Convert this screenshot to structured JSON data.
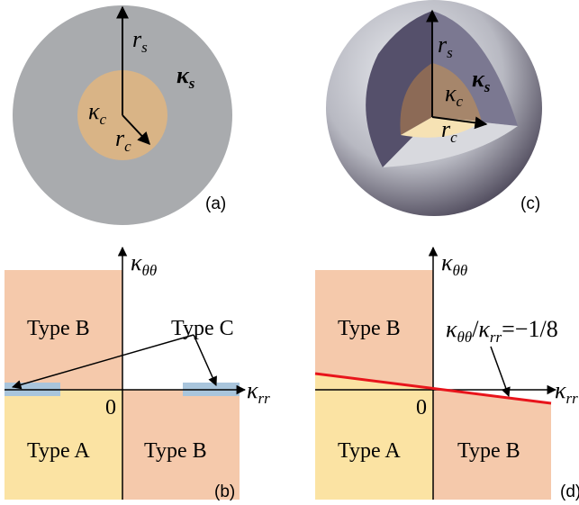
{
  "panel_a": {
    "shell_radius": {
      "symbol": "r",
      "sub": "s"
    },
    "shell_stiffness": {
      "symbol": "κ",
      "sub": "s"
    },
    "core_stiffness": {
      "symbol": "κ",
      "sub": "c"
    },
    "core_radius": {
      "symbol": "r",
      "sub": "c"
    },
    "tag": "(a)"
  },
  "panel_c": {
    "shell_radius": {
      "symbol": "r",
      "sub": "s"
    },
    "shell_stiffness": {
      "symbol": "κ",
      "sub": "s"
    },
    "core_stiffness": {
      "symbol": "κ",
      "sub": "c"
    },
    "core_radius": {
      "symbol": "r",
      "sub": "c"
    },
    "tag": "(c)"
  },
  "panel_b": {
    "y_axis": {
      "symbol": "κ",
      "sub": "θθ"
    },
    "x_axis": {
      "symbol": "κ",
      "sub": "rr"
    },
    "origin": "0",
    "regions": [
      "Type B",
      "Type C",
      "Type A",
      "Type B"
    ],
    "tag": "(b)"
  },
  "panel_d": {
    "y_axis": {
      "symbol": "κ",
      "sub": "θθ"
    },
    "x_axis": {
      "symbol": "κ",
      "sub": "rr"
    },
    "origin": "0",
    "regions": [
      "Type B",
      "Type A",
      "Type B"
    ],
    "line_label": {
      "num_symbol": "κ",
      "num_sub": "θθ",
      "separator": "/",
      "den_symbol": "κ",
      "den_sub": "rr",
      "rhs": "=−1/8"
    },
    "tag": "(d)"
  }
}
